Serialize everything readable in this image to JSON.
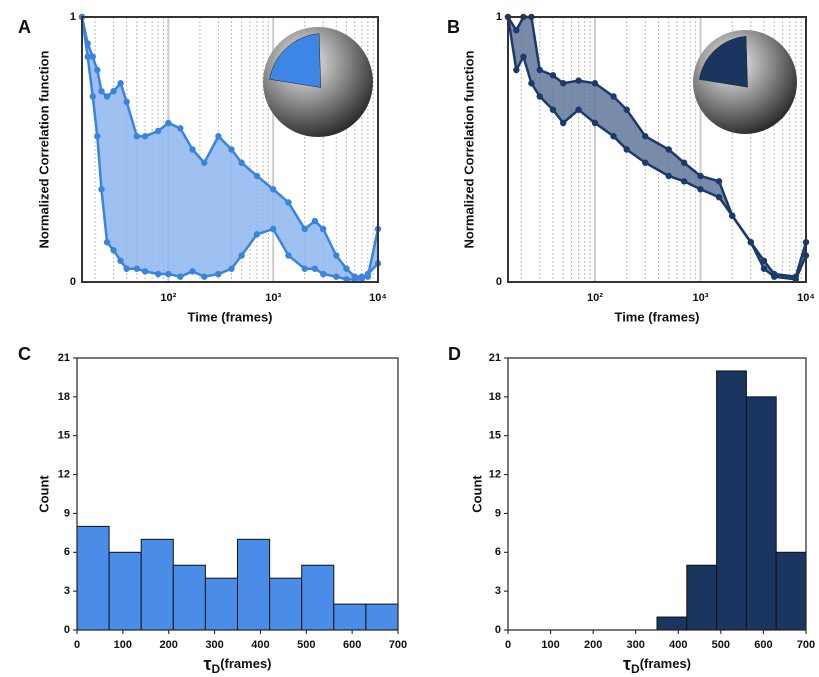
{
  "chart_data": [
    {
      "type": "line",
      "panel_label": "A",
      "ylabel": "Normalized Correlation function",
      "xlabel": "Time (frames)",
      "log_x": true,
      "xlim": [
        15,
        10000
      ],
      "ylim": [
        0,
        1
      ],
      "xticks": [
        {
          "value": 100,
          "label": "10²"
        },
        {
          "value": 1000,
          "label": "10³"
        },
        {
          "value": 10000,
          "label": "10⁴"
        }
      ],
      "yticks": [
        0,
        1
      ],
      "grid": true,
      "minor_grid": true,
      "fill_between": true,
      "fill_color": "#8db6ee",
      "inset_color": "#3d86e6",
      "series": [
        {
          "color": "#3a84de",
          "x": [
            15,
            17,
            19,
            21,
            23,
            26,
            30,
            35,
            40,
            50,
            60,
            80,
            100,
            130,
            170,
            220,
            300,
            400,
            500,
            700,
            1000,
            1400,
            2000,
            2500,
            3000,
            4000,
            5000,
            6000,
            7000,
            8000,
            10000
          ],
          "values": [
            1,
            0.9,
            0.85,
            0.8,
            0.72,
            0.7,
            0.72,
            0.75,
            0.68,
            0.55,
            0.55,
            0.57,
            0.6,
            0.58,
            0.5,
            0.45,
            0.55,
            0.5,
            0.45,
            0.4,
            0.35,
            0.3,
            0.2,
            0.23,
            0.2,
            0.1,
            0.05,
            0.02,
            0.02,
            0.02,
            0.2
          ]
        },
        {
          "color": "#3a84de",
          "x": [
            15,
            17,
            19,
            21,
            23,
            26,
            30,
            35,
            40,
            50,
            60,
            80,
            100,
            130,
            170,
            220,
            300,
            400,
            500,
            700,
            1000,
            1400,
            2000,
            2500,
            3000,
            4000,
            5000,
            6000,
            7000,
            8000,
            10000
          ],
          "values": [
            1,
            0.85,
            0.7,
            0.55,
            0.35,
            0.15,
            0.12,
            0.08,
            0.05,
            0.05,
            0.04,
            0.03,
            0.03,
            0.02,
            0.04,
            0.02,
            0.03,
            0.05,
            0.1,
            0.18,
            0.2,
            0.1,
            0.05,
            0.05,
            0.03,
            0.02,
            0.01,
            0.01,
            0.01,
            0.03,
            0.07
          ]
        }
      ]
    },
    {
      "type": "line",
      "panel_label": "B",
      "ylabel": "Normalized Correlation function",
      "xlabel": "Time (frames)",
      "log_x": true,
      "xlim": [
        15,
        10000
      ],
      "ylim": [
        0,
        1
      ],
      "xticks": [
        {
          "value": 100,
          "label": "10²"
        },
        {
          "value": 1000,
          "label": "10³"
        },
        {
          "value": 10000,
          "label": "10⁴"
        }
      ],
      "yticks": [
        0,
        1
      ],
      "grid": true,
      "minor_grid": true,
      "fill_between": true,
      "fill_color": "#60779a",
      "inset_color": "#1b3560",
      "series": [
        {
          "color": "#1b3a6b",
          "x": [
            15,
            18,
            21,
            25,
            30,
            40,
            50,
            70,
            100,
            150,
            200,
            300,
            500,
            700,
            1000,
            1500,
            2000,
            3000,
            4000,
            5000,
            8000,
            10000
          ],
          "values": [
            1,
            0.95,
            1,
            1,
            0.8,
            0.78,
            0.75,
            0.76,
            0.75,
            0.7,
            0.65,
            0.55,
            0.5,
            0.45,
            0.4,
            0.38,
            0.25,
            0.15,
            0.08,
            0.03,
            0.02,
            0.15
          ]
        },
        {
          "color": "#1b3a6b",
          "x": [
            15,
            18,
            21,
            25,
            30,
            40,
            50,
            70,
            100,
            150,
            200,
            300,
            500,
            700,
            1000,
            1500,
            2000,
            3000,
            4000,
            5000,
            8000,
            10000
          ],
          "values": [
            1,
            0.8,
            0.85,
            0.75,
            0.7,
            0.65,
            0.6,
            0.65,
            0.6,
            0.55,
            0.5,
            0.45,
            0.4,
            0.38,
            0.35,
            0.32,
            0.25,
            0.15,
            0.05,
            0.02,
            0.01,
            0.1
          ]
        }
      ]
    },
    {
      "type": "histogram",
      "panel_label": "C",
      "ylabel": "Count",
      "xlabel": "τ",
      "xlabel_sub": "D",
      "xlabel_unit": "(frames)",
      "bins": [
        0,
        70,
        140,
        210,
        280,
        350,
        420,
        490,
        560,
        630,
        700
      ],
      "counts": [
        8,
        6,
        7,
        5,
        4,
        7,
        4,
        5,
        2,
        2
      ],
      "color": "#4a8de8",
      "xlim": [
        0,
        700
      ],
      "ylim": [
        0,
        21
      ],
      "xticks": [
        0,
        100,
        200,
        300,
        400,
        500,
        600,
        700
      ],
      "yticks": [
        0,
        3,
        6,
        9,
        12,
        15,
        18,
        21
      ]
    },
    {
      "type": "histogram",
      "panel_label": "D",
      "ylabel": "Count",
      "xlabel": "τ",
      "xlabel_sub": "D",
      "xlabel_unit": "(frames)",
      "bins": [
        0,
        70,
        140,
        210,
        280,
        350,
        420,
        490,
        560,
        630,
        700
      ],
      "counts": [
        0,
        0,
        0,
        0,
        0,
        1,
        5,
        20,
        18,
        6
      ],
      "color": "#1a3660",
      "xlim": [
        0,
        700
      ],
      "ylim": [
        0,
        21
      ],
      "xticks": [
        0,
        100,
        200,
        300,
        400,
        500,
        600,
        700
      ],
      "yticks": [
        0,
        3,
        6,
        9,
        12,
        15,
        18,
        21
      ]
    }
  ]
}
